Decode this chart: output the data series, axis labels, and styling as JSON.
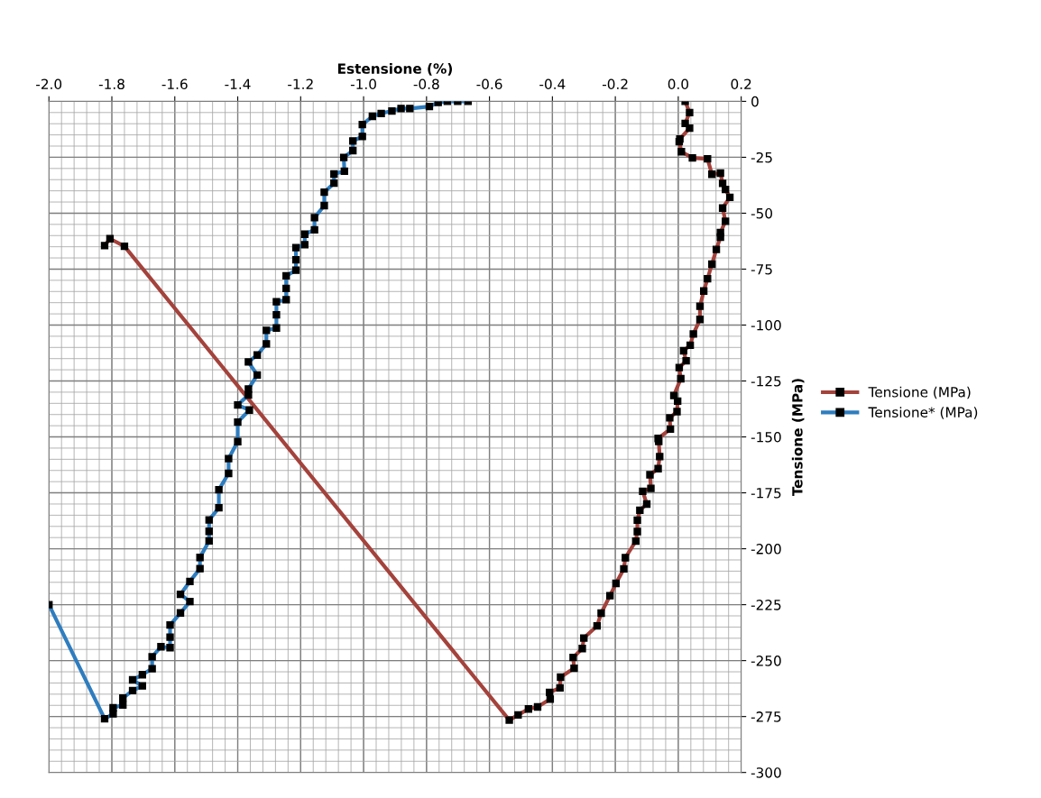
{
  "chart_data": {
    "type": "line",
    "xlabel": "Estensione (%)",
    "ylabel": "Tensione (MPa)",
    "xlim": [
      -2.0,
      0.2
    ],
    "ylim": [
      -300,
      0
    ],
    "xticks": [
      {
        "value": -2.0,
        "label": "-2.0"
      },
      -1.8,
      -1.6,
      -1.4,
      -1.2,
      {
        "value": -1.0,
        "label": "-1.0"
      },
      -0.8,
      -0.6,
      -0.4,
      -0.2,
      {
        "value": 0.0,
        "label": "0.0"
      },
      0.2
    ],
    "yticks": [
      0,
      -25,
      -50,
      -75,
      -100,
      -125,
      -150,
      -175,
      -200,
      -225,
      -250,
      -275,
      -300
    ],
    "grid": true,
    "legend": "right",
    "marker": "square",
    "line_style": "solid",
    "series": [
      {
        "name": "Tensione (MPa)",
        "color": "#a4423c",
        "x": [
          0.022,
          0.036,
          0.022,
          0.036,
          0.005,
          0.003,
          0.01,
          0.045,
          0.093,
          0.107,
          0.134,
          0.141,
          0.15,
          0.164,
          0.141,
          0.15,
          0.134,
          0.134,
          0.121,
          0.107,
          0.093,
          0.081,
          0.069,
          0.069,
          0.048,
          0.038,
          0.017,
          0.025,
          0.003,
          0.008,
          -0.014,
          -0.002,
          -0.004,
          -0.027,
          -0.025,
          -0.064,
          -0.062,
          -0.059,
          -0.064,
          -0.09,
          -0.087,
          -0.113,
          -0.1,
          -0.122,
          -0.13,
          -0.13,
          -0.135,
          -0.168,
          -0.173,
          -0.198,
          -0.217,
          -0.245,
          -0.258,
          -0.3,
          -0.305,
          -0.334,
          -0.331,
          -0.374,
          -0.376,
          -0.409,
          -0.407,
          -0.447,
          -0.476,
          -0.509,
          -0.537,
          -1.76,
          -1.806,
          -1.823
        ],
        "values": [
          0,
          -5,
          -9.9,
          -12,
          -16.8,
          -18,
          -22.5,
          -25.3,
          -25.7,
          -32.6,
          -32.1,
          -36.7,
          -39.4,
          -42.9,
          -47.7,
          -53.6,
          -58.7,
          -60.7,
          -66.2,
          -72.8,
          -79.3,
          -84.8,
          -91.6,
          -97.5,
          -104,
          -109,
          -111.5,
          -116,
          -119,
          -124,
          -131.5,
          -134,
          -138.7,
          -141.5,
          -146.5,
          -150.7,
          -152,
          -158.8,
          -164.2,
          -166.9,
          -173,
          -174.3,
          -180,
          -182.8,
          -187.2,
          -192.3,
          -196.6,
          -204,
          -209,
          -215.5,
          -221,
          -228.8,
          -234.5,
          -239.9,
          -244.6,
          -248.6,
          -253.4,
          -257.4,
          -262.2,
          -264.2,
          -267.2,
          -270.7,
          -271.6,
          -274.3,
          -276.6,
          -64.8,
          -61.4,
          -64.5
        ]
      },
      {
        "name": "Tensione* (MPa)",
        "color": "#2e7dbf",
        "x": [
          -2.0,
          -1.823,
          -1.796,
          -1.796,
          -1.765,
          -1.765,
          -1.734,
          -1.703,
          -1.734,
          -1.703,
          -1.672,
          -1.672,
          -1.644,
          -1.615,
          -1.615,
          -1.615,
          -1.582,
          -1.552,
          -1.582,
          -1.552,
          -1.52,
          -1.52,
          -1.491,
          -1.491,
          -1.491,
          -1.46,
          -1.46,
          -1.429,
          -1.429,
          -1.4,
          -1.4,
          -1.363,
          -1.4,
          -1.366,
          -1.366,
          -1.338,
          -1.366,
          -1.338,
          -1.309,
          -1.309,
          -1.277,
          -1.277,
          -1.277,
          -1.246,
          -1.246,
          -1.246,
          -1.215,
          -1.215,
          -1.215,
          -1.187,
          -1.187,
          -1.156,
          -1.156,
          -1.125,
          -1.125,
          -1.094,
          -1.094,
          -1.061,
          -1.063,
          -1.034,
          -1.034,
          -1.004,
          -1.004,
          -0.972,
          -0.944,
          -0.91,
          -0.881,
          -0.853,
          -0.791,
          -0.763,
          -0.734,
          -0.701,
          -0.668
        ],
        "values": [
          -225,
          -276,
          -273.8,
          -271.1,
          -269.8,
          -266.7,
          -263.4,
          -261.3,
          -258.6,
          -256.3,
          -253.6,
          -248.3,
          -243.8,
          -244.2,
          -239.5,
          -234.1,
          -228.7,
          -223.6,
          -220.4,
          -214.6,
          -208.9,
          -203.9,
          -196.5,
          -192.2,
          -187.1,
          -181.7,
          -173.6,
          -166.3,
          -159.7,
          -152.1,
          -143.4,
          -138.0,
          -135.7,
          -131.3,
          -128.6,
          -122.3,
          -116.5,
          -113.4,
          -108.4,
          -102.4,
          -101.3,
          -95.4,
          -89.6,
          -88.7,
          -83.6,
          -78.0,
          -75.5,
          -70.8,
          -65.4,
          -64.1,
          -59.4,
          -57.4,
          -52.0,
          -46.6,
          -40.6,
          -36.6,
          -32.5,
          -31.2,
          -25.1,
          -22.0,
          -17.7,
          -15.7,
          -10.4,
          -6.7,
          -5.4,
          -4.3,
          -3.2,
          -3.2,
          -2.3,
          -0.5,
          0,
          0,
          0
        ]
      }
    ]
  }
}
